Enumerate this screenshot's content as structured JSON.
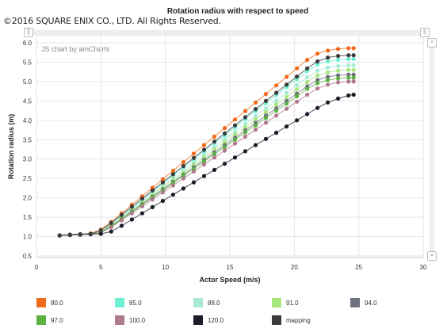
{
  "copyright": "©2016 SQUARE ENIX CO., LTD. All Rights Reserved.",
  "credit": "JS chart by amCharts",
  "chart_data": {
    "type": "scatter",
    "title": "Rotation radius with respect to speed",
    "xlabel": "Actor Speed (m/s)",
    "ylabel": "Rotation radius (m)",
    "xlim": [
      0,
      30
    ],
    "ylim": [
      0.5,
      6.0
    ],
    "x_ticks": [
      "0",
      "5",
      "10",
      "15",
      "20",
      "25",
      "30"
    ],
    "y_ticks": [
      "0.5",
      "1.0",
      "1.5",
      "2.0",
      "2.5",
      "3.0",
      "3.5",
      "4.0",
      "4.5",
      "5.0",
      "5.5",
      "6.0"
    ],
    "grid": true,
    "legend_position": "bottom",
    "x": [
      1.8,
      2.6,
      3.4,
      4.2,
      5.0,
      5.8,
      6.6,
      7.4,
      8.2,
      9.0,
      9.8,
      10.6,
      11.4,
      12.2,
      13.0,
      13.8,
      14.6,
      15.4,
      16.2,
      17.0,
      17.8,
      18.6,
      19.4,
      20.2,
      21.0,
      21.8,
      22.6,
      23.4,
      24.2,
      24.6
    ],
    "series": [
      {
        "name": "80.0",
        "color": "#f26a1b",
        "values": [
          1.03,
          1.05,
          1.06,
          1.08,
          1.18,
          1.38,
          1.6,
          1.82,
          2.04,
          2.26,
          2.48,
          2.7,
          2.92,
          3.14,
          3.36,
          3.58,
          3.8,
          4.02,
          4.24,
          4.46,
          4.68,
          4.9,
          5.12,
          5.34,
          5.56,
          5.72,
          5.8,
          5.84,
          5.86,
          5.86
        ]
      },
      {
        "name": "85.0",
        "color": "#6ef0d4",
        "values": [
          1.03,
          1.05,
          1.06,
          1.07,
          1.15,
          1.33,
          1.54,
          1.74,
          1.95,
          2.16,
          2.37,
          2.58,
          2.78,
          2.99,
          3.2,
          3.41,
          3.61,
          3.82,
          4.03,
          4.24,
          4.44,
          4.65,
          4.86,
          5.06,
          5.27,
          5.44,
          5.52,
          5.56,
          5.58,
          5.58
        ]
      },
      {
        "name": "88.0",
        "color": "#a8ead6",
        "values": [
          1.03,
          1.05,
          1.06,
          1.07,
          1.13,
          1.31,
          1.51,
          1.71,
          1.91,
          2.11,
          2.31,
          2.51,
          2.71,
          2.91,
          3.11,
          3.31,
          3.51,
          3.71,
          3.91,
          4.11,
          4.31,
          4.51,
          4.71,
          4.91,
          5.11,
          5.28,
          5.36,
          5.4,
          5.42,
          5.42
        ]
      },
      {
        "name": "91.0",
        "color": "#a8e67e",
        "values": [
          1.03,
          1.05,
          1.06,
          1.07,
          1.12,
          1.29,
          1.48,
          1.68,
          1.87,
          2.07,
          2.26,
          2.46,
          2.65,
          2.85,
          3.04,
          3.24,
          3.43,
          3.63,
          3.82,
          4.02,
          4.21,
          4.41,
          4.6,
          4.8,
          4.99,
          5.16,
          5.24,
          5.28,
          5.3,
          5.3
        ]
      },
      {
        "name": "94.0",
        "color": "#6e7080",
        "values": [
          1.03,
          1.05,
          1.06,
          1.07,
          1.11,
          1.27,
          1.46,
          1.65,
          1.84,
          2.03,
          2.22,
          2.41,
          2.6,
          2.79,
          2.98,
          3.17,
          3.36,
          3.55,
          3.74,
          3.93,
          4.12,
          4.31,
          4.5,
          4.69,
          4.88,
          5.04,
          5.12,
          5.16,
          5.18,
          5.18
        ]
      },
      {
        "name": "97.0",
        "color": "#5ab240",
        "values": [
          1.03,
          1.05,
          1.06,
          1.07,
          1.11,
          1.26,
          1.45,
          1.63,
          1.82,
          2.01,
          2.19,
          2.38,
          2.57,
          2.75,
          2.94,
          3.13,
          3.31,
          3.5,
          3.69,
          3.87,
          4.06,
          4.25,
          4.43,
          4.62,
          4.81,
          4.96,
          5.04,
          5.08,
          5.1,
          5.1
        ]
      },
      {
        "name": "100.0",
        "color": "#b07a8c",
        "values": [
          1.03,
          1.05,
          1.06,
          1.07,
          1.1,
          1.24,
          1.42,
          1.6,
          1.78,
          1.96,
          2.14,
          2.32,
          2.5,
          2.68,
          2.86,
          3.04,
          3.22,
          3.4,
          3.58,
          3.76,
          3.94,
          4.12,
          4.3,
          4.48,
          4.66,
          4.82,
          4.92,
          4.98,
          5.0,
          5.0
        ]
      },
      {
        "name": "120.0",
        "color": "#1a1c2a",
        "values": [
          1.03,
          1.04,
          1.05,
          1.06,
          1.07,
          1.13,
          1.28,
          1.44,
          1.6,
          1.76,
          1.92,
          2.08,
          2.24,
          2.4,
          2.56,
          2.72,
          2.88,
          3.04,
          3.2,
          3.36,
          3.52,
          3.68,
          3.84,
          4.0,
          4.16,
          4.32,
          4.46,
          4.56,
          4.64,
          4.66
        ]
      },
      {
        "name": "mapping",
        "color": "#3a3a3a",
        "values": [
          1.03,
          1.05,
          1.06,
          1.07,
          1.16,
          1.35,
          1.56,
          1.77,
          1.98,
          2.19,
          2.4,
          2.61,
          2.82,
          3.03,
          3.24,
          3.45,
          3.66,
          3.87,
          4.08,
          4.29,
          4.5,
          4.71,
          4.92,
          5.13,
          5.34,
          5.52,
          5.62,
          5.66,
          5.68,
          5.68
        ]
      }
    ]
  }
}
